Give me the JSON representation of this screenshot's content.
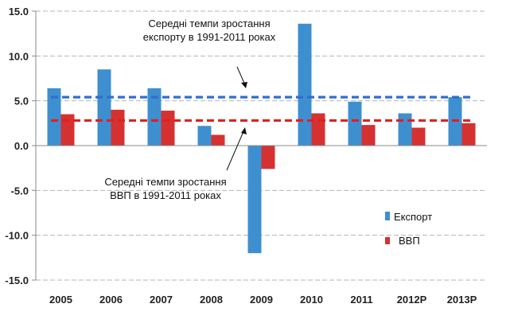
{
  "chart_data": {
    "type": "bar",
    "categories": [
      "2005",
      "2006",
      "2007",
      "2008",
      "2009",
      "2010",
      "2011",
      "2012P",
      "2013P"
    ],
    "series": [
      {
        "name": "Експорт",
        "color": "#3E8FD0",
        "values": [
          6.4,
          8.5,
          6.4,
          2.2,
          -12.0,
          13.6,
          4.9,
          3.6,
          5.4
        ]
      },
      {
        "name": "ВВП",
        "color": "#D63131",
        "values": [
          3.5,
          4.0,
          3.9,
          1.2,
          -2.6,
          3.6,
          2.3,
          2.0,
          2.5
        ]
      }
    ],
    "reference_lines": [
      {
        "series": "Експорт",
        "value": 5.4,
        "color": "#2F6FD0",
        "style": "dashed"
      },
      {
        "series": "ВВП",
        "value": 2.8,
        "color": "#E02020",
        "style": "dashed"
      }
    ],
    "annotations": [
      {
        "lines": [
          "Середні темпи зростання",
          "експорту в 1991-2011 роках"
        ]
      },
      {
        "lines": [
          "Середні темпи зростання",
          "ВВП в 1991-2011 роках"
        ]
      }
    ],
    "ylim": [
      -15,
      15
    ],
    "yticks": [
      "15.0",
      "10.0",
      "5.0",
      "0.0",
      "-5.0",
      "-10.0",
      "-15.0"
    ],
    "ytick_values": [
      15,
      10,
      5,
      0,
      -5,
      -10,
      -15
    ],
    "grid": true,
    "legend_position": "right",
    "title": "",
    "xlabel": "",
    "ylabel": ""
  }
}
